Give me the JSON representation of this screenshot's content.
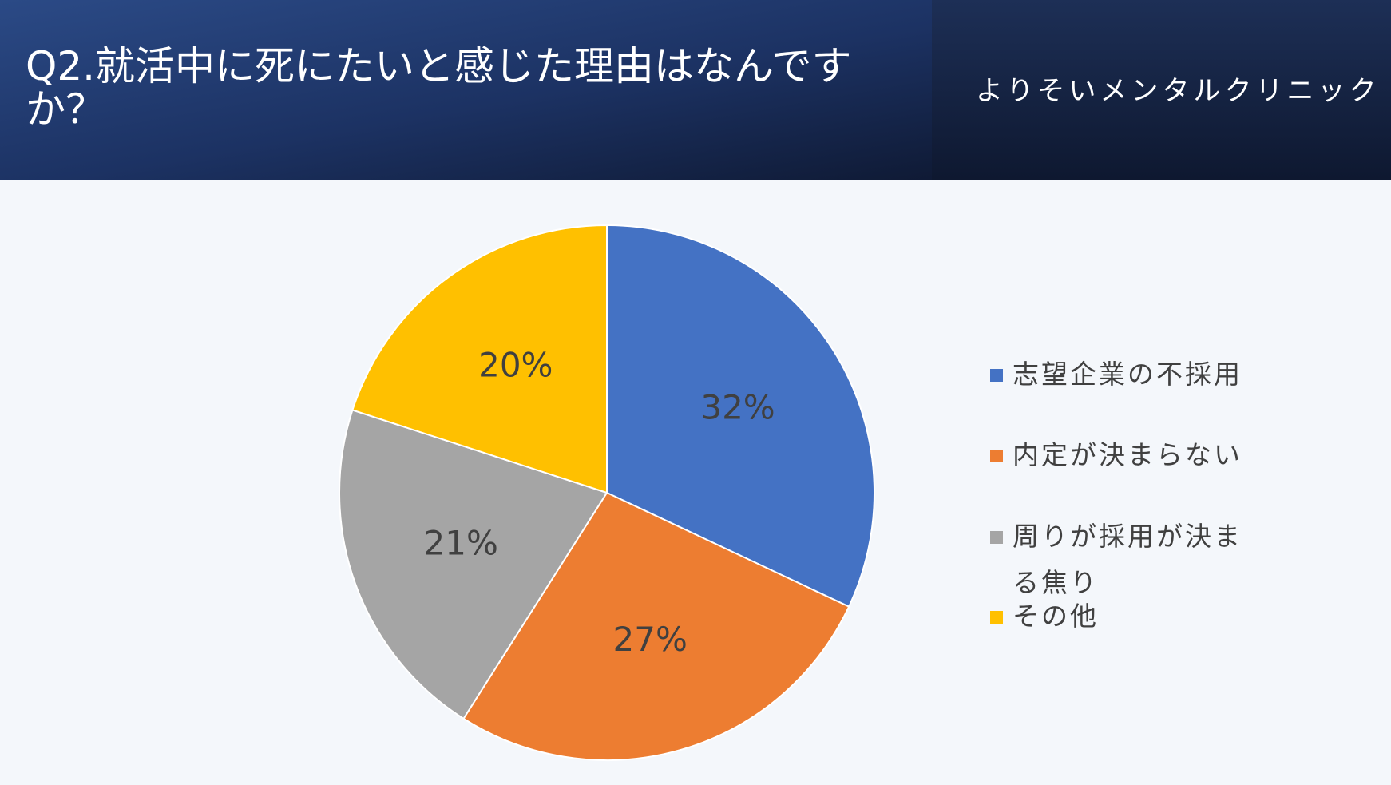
{
  "chart_data": {
    "type": "pie",
    "title": "Q2.就活中に死にたいと感じた理由はなんですか？",
    "subtitle": "よりそいメンタルクリニック",
    "categories": [
      "志望企業の不採用",
      "内定が決まらない",
      "周りが採用が決まる焦り",
      "その他"
    ],
    "values": [
      32,
      27,
      21,
      20
    ],
    "value_labels": [
      "32%",
      "27%",
      "21%",
      "20%"
    ],
    "colors": [
      "#4472c4",
      "#ed7d31",
      "#a5a5a5",
      "#ffc000"
    ],
    "legend": "right"
  }
}
